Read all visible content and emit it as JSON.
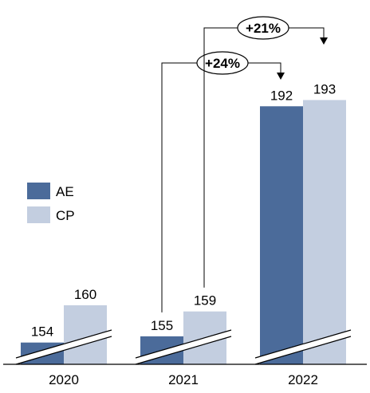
{
  "chart_data": {
    "type": "bar",
    "title": "",
    "xlabel": "",
    "ylabel": "",
    "axis_break": true,
    "categories": [
      "2020",
      "2021",
      "2022"
    ],
    "series": [
      {
        "name": "AE",
        "values": [
          154,
          155,
          192
        ],
        "color": "#4b6b9a"
      },
      {
        "name": "CP",
        "values": [
          160,
          159,
          193
        ],
        "color": "#c3cee0"
      }
    ],
    "legend_position": "left",
    "annotations": [
      {
        "text": "+24%",
        "from_category": "2021",
        "from_series": "AE",
        "to_category": "2022",
        "to_series": "AE"
      },
      {
        "text": "+21%",
        "from_category": "2021",
        "from_series": "CP",
        "to_category": "2022",
        "to_series": "CP"
      }
    ]
  }
}
